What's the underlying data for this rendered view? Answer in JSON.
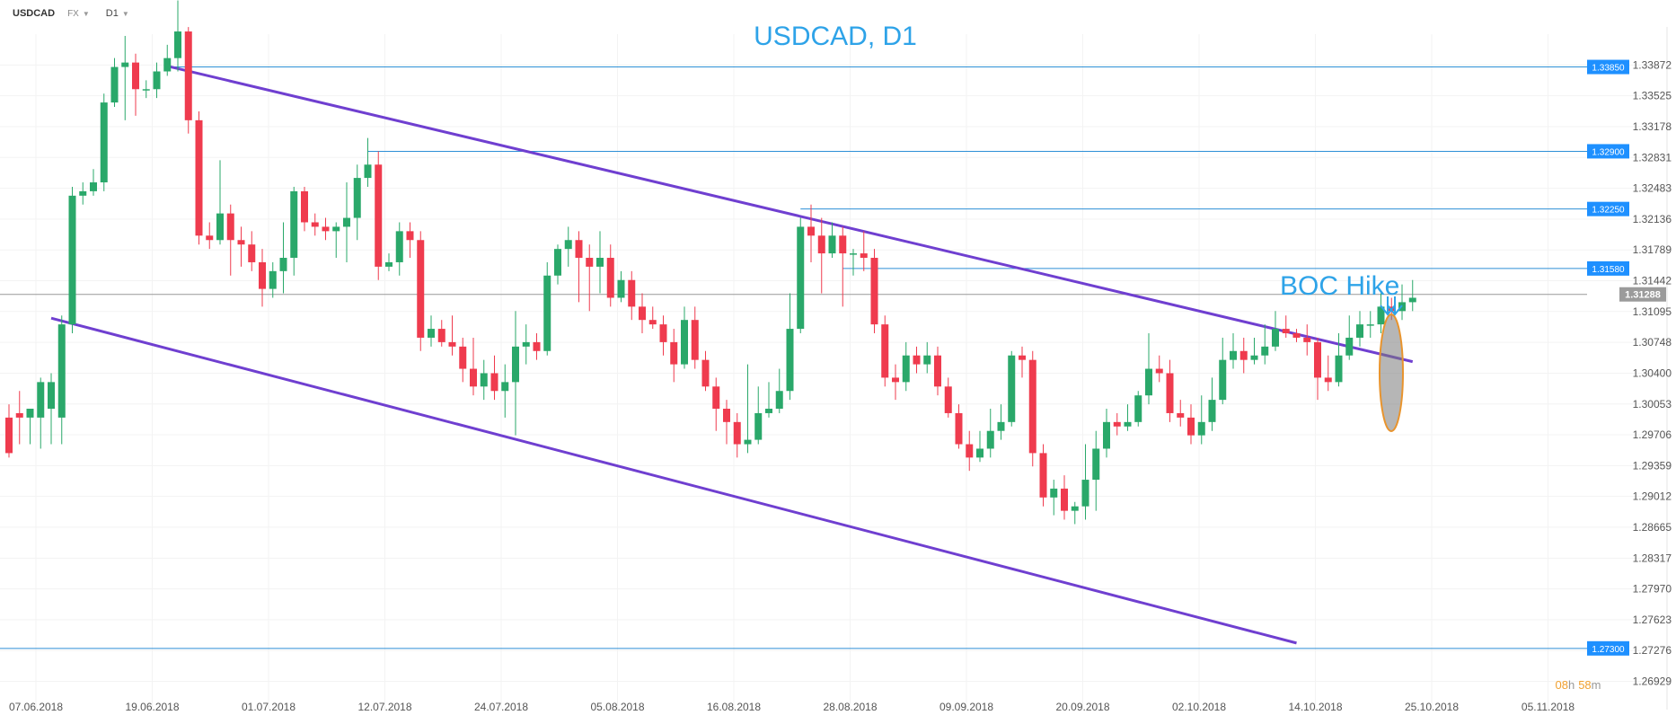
{
  "toolbar": {
    "symbol": "USDCAD",
    "market": "FX",
    "timeframe": "D1"
  },
  "chart_data": {
    "type": "candlestick",
    "title": "USDCAD, D1",
    "annotation": "BOC Hike",
    "countdown": {
      "hours": "08",
      "h": "h",
      "minutes": "58",
      "m": "m"
    },
    "current_price": "1.31288",
    "ylim": [
      1.2661,
      1.3422
    ],
    "y_ticks": [
      "1.33872",
      "1.33525",
      "1.33178",
      "1.32831",
      "1.32483",
      "1.32136",
      "1.31789",
      "1.31442",
      "1.31095",
      "1.30748",
      "1.30400",
      "1.30053",
      "1.29706",
      "1.29359",
      "1.29012",
      "1.28665",
      "1.28317",
      "1.27970",
      "1.27623",
      "1.27276",
      "1.26929"
    ],
    "x_ticks": [
      "07.06.2018",
      "19.06.2018",
      "01.07.2018",
      "12.07.2018",
      "24.07.2018",
      "05.08.2018",
      "16.08.2018",
      "28.08.2018",
      "09.09.2018",
      "20.09.2018",
      "02.10.2018",
      "14.10.2018",
      "25.10.2018",
      "05.11.2018"
    ],
    "levels": [
      {
        "label": "1.33850",
        "value": 1.3385,
        "from_index": 15
      },
      {
        "label": "1.32900",
        "value": 1.329,
        "from_index": 34
      },
      {
        "label": "1.32250",
        "value": 1.3225,
        "from_index": 75
      },
      {
        "label": "1.31580",
        "value": 1.3158,
        "from_index": 79
      },
      {
        "label": "1.27300",
        "value": 1.273,
        "from_index": -2
      }
    ],
    "channel": [
      {
        "from": [
          4,
          1.3102
        ],
        "to": [
          122,
          1.2736
        ]
      },
      {
        "from": [
          15,
          1.3386
        ],
        "to": [
          133,
          1.3053
        ]
      }
    ],
    "candles": [
      [
        1.299,
        1.295,
        1.3005,
        1.2945
      ],
      [
        1.2995,
        1.299,
        1.302,
        1.296
      ],
      [
        1.299,
        1.3,
        1.3,
        1.296
      ],
      [
        1.299,
        1.303,
        1.3035,
        1.2955
      ],
      [
        1.3,
        1.303,
        1.304,
        1.296
      ],
      [
        1.299,
        1.3095,
        1.3105,
        1.296
      ],
      [
        1.3095,
        1.324,
        1.325,
        1.3085
      ],
      [
        1.324,
        1.3245,
        1.3255,
        1.323
      ],
      [
        1.3245,
        1.3255,
        1.327,
        1.324
      ],
      [
        1.3255,
        1.3345,
        1.3355,
        1.3245
      ],
      [
        1.3345,
        1.3385,
        1.3395,
        1.334
      ],
      [
        1.3385,
        1.339,
        1.342,
        1.3325
      ],
      [
        1.339,
        1.336,
        1.34,
        1.333
      ],
      [
        1.336,
        1.336,
        1.337,
        1.335
      ],
      [
        1.336,
        1.338,
        1.339,
        1.335
      ],
      [
        1.338,
        1.3395,
        1.341,
        1.3375
      ],
      [
        1.3395,
        1.3425,
        1.346,
        1.338
      ],
      [
        1.3425,
        1.3325,
        1.343,
        1.331
      ],
      [
        1.3325,
        1.3195,
        1.3335,
        1.3185
      ],
      [
        1.3195,
        1.319,
        1.321,
        1.318
      ],
      [
        1.319,
        1.322,
        1.328,
        1.3185
      ],
      [
        1.322,
        1.319,
        1.323,
        1.315
      ],
      [
        1.319,
        1.3185,
        1.3205,
        1.316
      ],
      [
        1.3185,
        1.3165,
        1.32,
        1.3155
      ],
      [
        1.3165,
        1.3135,
        1.318,
        1.3115
      ],
      [
        1.3135,
        1.3155,
        1.3165,
        1.3125
      ],
      [
        1.3155,
        1.317,
        1.321,
        1.313
      ],
      [
        1.317,
        1.3245,
        1.325,
        1.315
      ],
      [
        1.3245,
        1.321,
        1.325,
        1.32
      ],
      [
        1.321,
        1.3205,
        1.322,
        1.3195
      ],
      [
        1.3205,
        1.32,
        1.3215,
        1.319
      ],
      [
        1.32,
        1.3205,
        1.321,
        1.317
      ],
      [
        1.3205,
        1.3215,
        1.3255,
        1.3165
      ],
      [
        1.3215,
        1.326,
        1.3275,
        1.319
      ],
      [
        1.326,
        1.3275,
        1.3305,
        1.325
      ],
      [
        1.3275,
        1.316,
        1.329,
        1.3145
      ],
      [
        1.316,
        1.3165,
        1.3175,
        1.3155
      ],
      [
        1.3165,
        1.32,
        1.321,
        1.315
      ],
      [
        1.32,
        1.319,
        1.321,
        1.317
      ],
      [
        1.319,
        1.308,
        1.32,
        1.3065
      ],
      [
        1.308,
        1.309,
        1.3105,
        1.307
      ],
      [
        1.309,
        1.3075,
        1.31,
        1.307
      ],
      [
        1.3075,
        1.307,
        1.3105,
        1.306
      ],
      [
        1.307,
        1.3045,
        1.308,
        1.303
      ],
      [
        1.3045,
        1.3025,
        1.308,
        1.3015
      ],
      [
        1.3025,
        1.304,
        1.3055,
        1.301
      ],
      [
        1.304,
        1.302,
        1.306,
        1.301
      ],
      [
        1.302,
        1.303,
        1.305,
        1.299
      ],
      [
        1.303,
        1.307,
        1.311,
        1.297
      ],
      [
        1.307,
        1.3075,
        1.3095,
        1.305
      ],
      [
        1.3075,
        1.3065,
        1.3085,
        1.3055
      ],
      [
        1.3065,
        1.315,
        1.3165,
        1.306
      ],
      [
        1.315,
        1.318,
        1.3185,
        1.314
      ],
      [
        1.318,
        1.319,
        1.3205,
        1.316
      ],
      [
        1.319,
        1.317,
        1.32,
        1.312
      ],
      [
        1.317,
        1.316,
        1.3185,
        1.311
      ],
      [
        1.316,
        1.317,
        1.32,
        1.313
      ],
      [
        1.317,
        1.3125,
        1.3185,
        1.3115
      ],
      [
        1.3125,
        1.3145,
        1.3155,
        1.312
      ],
      [
        1.3145,
        1.3115,
        1.3155,
        1.31
      ],
      [
        1.3115,
        1.31,
        1.313,
        1.3085
      ],
      [
        1.31,
        1.3095,
        1.3115,
        1.309
      ],
      [
        1.3095,
        1.3075,
        1.3105,
        1.306
      ],
      [
        1.3075,
        1.305,
        1.309,
        1.303
      ],
      [
        1.305,
        1.31,
        1.3115,
        1.3045
      ],
      [
        1.31,
        1.3055,
        1.3115,
        1.3045
      ],
      [
        1.3055,
        1.3025,
        1.3065,
        1.302
      ],
      [
        1.3025,
        1.3,
        1.3035,
        1.2975
      ],
      [
        1.3,
        1.2985,
        1.301,
        1.296
      ],
      [
        1.2985,
        1.296,
        1.2995,
        1.2945
      ],
      [
        1.296,
        1.2965,
        1.305,
        1.295
      ],
      [
        1.2965,
        1.2995,
        1.3025,
        1.296
      ],
      [
        1.2995,
        1.3,
        1.303,
        1.299
      ],
      [
        1.3,
        1.302,
        1.3045,
        1.2995
      ],
      [
        1.302,
        1.309,
        1.313,
        1.301
      ],
      [
        1.309,
        1.3205,
        1.3215,
        1.3085
      ],
      [
        1.3205,
        1.3195,
        1.323,
        1.3165
      ],
      [
        1.3195,
        1.3175,
        1.3215,
        1.313
      ],
      [
        1.3175,
        1.3195,
        1.321,
        1.317
      ],
      [
        1.3195,
        1.3175,
        1.3205,
        1.3115
      ],
      [
        1.3175,
        1.3175,
        1.318,
        1.315
      ],
      [
        1.3175,
        1.317,
        1.32,
        1.3155
      ],
      [
        1.317,
        1.3095,
        1.318,
        1.3085
      ],
      [
        1.3095,
        1.3035,
        1.3105,
        1.3025
      ],
      [
        1.3035,
        1.303,
        1.305,
        1.301
      ],
      [
        1.303,
        1.306,
        1.3075,
        1.302
      ],
      [
        1.306,
        1.305,
        1.307,
        1.304
      ],
      [
        1.305,
        1.306,
        1.3075,
        1.304
      ],
      [
        1.306,
        1.3025,
        1.307,
        1.3015
      ],
      [
        1.3025,
        1.2995,
        1.3035,
        1.299
      ],
      [
        1.2995,
        1.296,
        1.3005,
        1.2955
      ],
      [
        1.296,
        1.2945,
        1.2975,
        1.293
      ],
      [
        1.2945,
        1.2955,
        1.2975,
        1.294
      ],
      [
        1.2955,
        1.2975,
        1.3,
        1.2945
      ],
      [
        1.2975,
        1.2985,
        1.3005,
        1.2965
      ],
      [
        1.2985,
        1.306,
        1.3065,
        1.298
      ],
      [
        1.306,
        1.3055,
        1.307,
        1.3035
      ],
      [
        1.3055,
        1.295,
        1.3065,
        1.2935
      ],
      [
        1.295,
        1.29,
        1.296,
        1.289
      ],
      [
        1.29,
        1.291,
        1.292,
        1.288
      ],
      [
        1.291,
        1.2885,
        1.2925,
        1.2875
      ],
      [
        1.2885,
        1.289,
        1.2895,
        1.287
      ],
      [
        1.289,
        1.292,
        1.296,
        1.2875
      ],
      [
        1.292,
        1.2955,
        1.2975,
        1.2885
      ],
      [
        1.2955,
        1.2985,
        1.3,
        1.2945
      ],
      [
        1.2985,
        1.298,
        1.2995,
        1.297
      ],
      [
        1.298,
        1.2985,
        1.3005,
        1.2975
      ],
      [
        1.2985,
        1.3015,
        1.302,
        1.298
      ],
      [
        1.3015,
        1.3045,
        1.3085,
        1.3005
      ],
      [
        1.3045,
        1.304,
        1.306,
        1.303
      ],
      [
        1.304,
        1.2995,
        1.3055,
        1.2985
      ],
      [
        1.2995,
        1.299,
        1.301,
        1.298
      ],
      [
        1.299,
        1.297,
        1.3005,
        1.296
      ],
      [
        1.297,
        1.2985,
        1.3015,
        1.296
      ],
      [
        1.2985,
        1.301,
        1.3035,
        1.2975
      ],
      [
        1.301,
        1.3055,
        1.308,
        1.3005
      ],
      [
        1.3055,
        1.3065,
        1.3085,
        1.3045
      ],
      [
        1.3065,
        1.3055,
        1.308,
        1.304
      ],
      [
        1.3055,
        1.306,
        1.308,
        1.305
      ],
      [
        1.306,
        1.307,
        1.3095,
        1.305
      ],
      [
        1.307,
        1.309,
        1.311,
        1.3065
      ],
      [
        1.309,
        1.3085,
        1.3105,
        1.308
      ],
      [
        1.3085,
        1.308,
        1.309,
        1.3075
      ],
      [
        1.308,
        1.3075,
        1.3095,
        1.306
      ],
      [
        1.3075,
        1.3035,
        1.308,
        1.301
      ],
      [
        1.3035,
        1.303,
        1.306,
        1.302
      ],
      [
        1.303,
        1.306,
        1.3085,
        1.3025
      ],
      [
        1.306,
        1.308,
        1.3105,
        1.3055
      ],
      [
        1.308,
        1.3095,
        1.311,
        1.307
      ],
      [
        1.3095,
        1.3095,
        1.311,
        1.308
      ],
      [
        1.3095,
        1.3115,
        1.313,
        1.3085
      ],
      [
        1.3115,
        1.311,
        1.3125,
        1.31
      ],
      [
        1.311,
        1.312,
        1.314,
        1.31
      ],
      [
        1.312,
        1.3125,
        1.3145,
        1.311
      ]
    ]
  }
}
